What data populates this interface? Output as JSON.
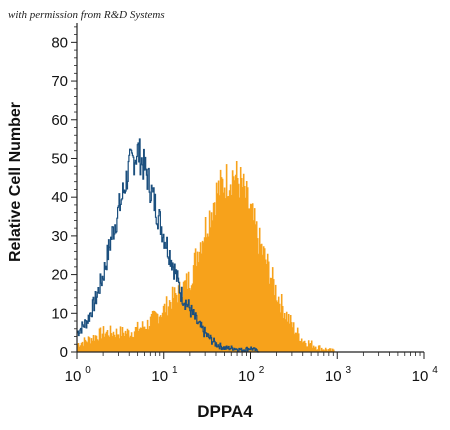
{
  "note": "with permission from R&D Systems",
  "chart_data": {
    "type": "area",
    "title": "",
    "xlabel": "DPPA4",
    "ylabel": "Relative Cell Number",
    "xscale": "log",
    "xlim": [
      1,
      10000
    ],
    "ylim": [
      0,
      85
    ],
    "yticks": [
      0,
      10,
      20,
      30,
      40,
      50,
      60,
      70,
      80
    ],
    "xticks": [
      {
        "value": 1,
        "base": "10",
        "exp": "0"
      },
      {
        "value": 10,
        "base": "10",
        "exp": "1"
      },
      {
        "value": 100,
        "base": "10",
        "exp": "2"
      },
      {
        "value": 1000,
        "base": "10",
        "exp": "3"
      },
      {
        "value": 10000,
        "base": "10",
        "exp": "4"
      }
    ],
    "grid": false,
    "series": [
      {
        "style": "filled",
        "color": "#f7a21b",
        "x": [
          1.0,
          1.3,
          1.6,
          2.0,
          2.5,
          3.2,
          4.0,
          5.0,
          6.3,
          7.9,
          10,
          12.6,
          15.8,
          20,
          25,
          32,
          40,
          50,
          63,
          79,
          100,
          126,
          158,
          200,
          251,
          316,
          398,
          501,
          631,
          794,
          1000
        ],
        "y": [
          2,
          3,
          4,
          5,
          5,
          5,
          5,
          6,
          7,
          9,
          11,
          14,
          16,
          19,
          27,
          34,
          41,
          44,
          46,
          43,
          36,
          28,
          22,
          15,
          10,
          6,
          3,
          2,
          1,
          0.5,
          0
        ]
      },
      {
        "style": "outline",
        "color": "#1b4f7e",
        "x": [
          1.0,
          1.3,
          1.6,
          2.0,
          2.5,
          3.2,
          4.0,
          5.0,
          6.3,
          7.9,
          10,
          12.6,
          15.8,
          20,
          25,
          32,
          40,
          50,
          63,
          79,
          100,
          126
        ],
        "y": [
          5,
          8,
          13,
          20,
          30,
          39,
          48,
          52,
          46,
          38,
          30,
          23,
          15,
          11,
          7,
          4,
          2,
          1,
          1,
          0.5,
          1,
          0
        ]
      }
    ]
  }
}
